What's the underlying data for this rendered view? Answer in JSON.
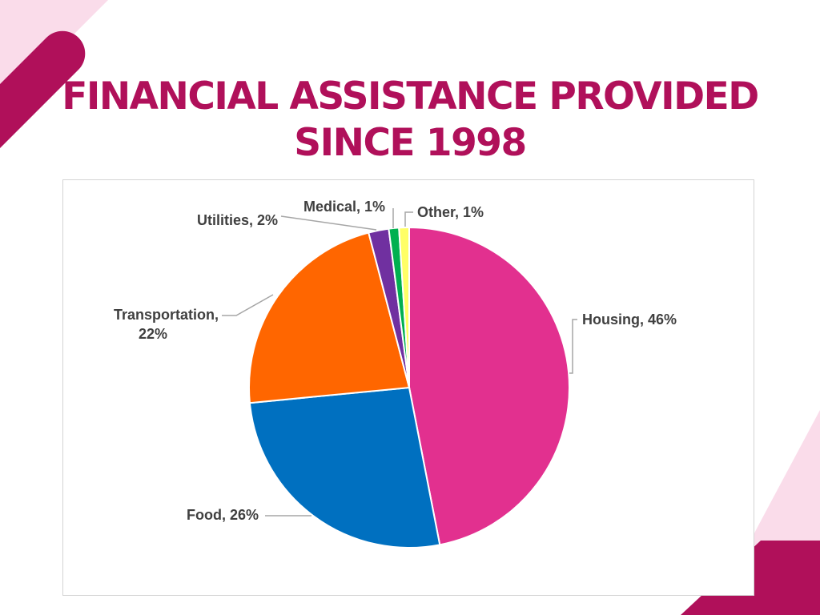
{
  "page": {
    "title_line1": "FINANCIAL ASSISTANCE PROVIDED",
    "title_line2": "SINCE 1998"
  },
  "colors": {
    "brand": "#b0105a",
    "deco_light": "#fadcea",
    "label_text": "#404040",
    "leader_line": "#a6a6a6"
  },
  "chart_data": {
    "type": "pie",
    "title": "",
    "legend": "none",
    "slices": [
      {
        "category": "Housing",
        "value": 46,
        "color": "#e2308f",
        "label_lines": [
          "Housing, 46%"
        ]
      },
      {
        "category": "Food",
        "value": 26,
        "color": "#0070c0",
        "label_lines": [
          "Food, 26%"
        ]
      },
      {
        "category": "Transportation",
        "value": 22,
        "color": "#ff6600",
        "label_lines": [
          "Transportation,",
          "22%"
        ]
      },
      {
        "category": "Utilities",
        "value": 2,
        "color": "#7030a0",
        "label_lines": [
          "Utilities,  2%"
        ]
      },
      {
        "category": "Medical",
        "value": 1,
        "color": "#00b050",
        "label_lines": [
          "Medical, 1%"
        ]
      },
      {
        "category": "Other",
        "value": 1,
        "color": "#ffff66",
        "label_lines": [
          "Other, 1%"
        ]
      }
    ]
  }
}
